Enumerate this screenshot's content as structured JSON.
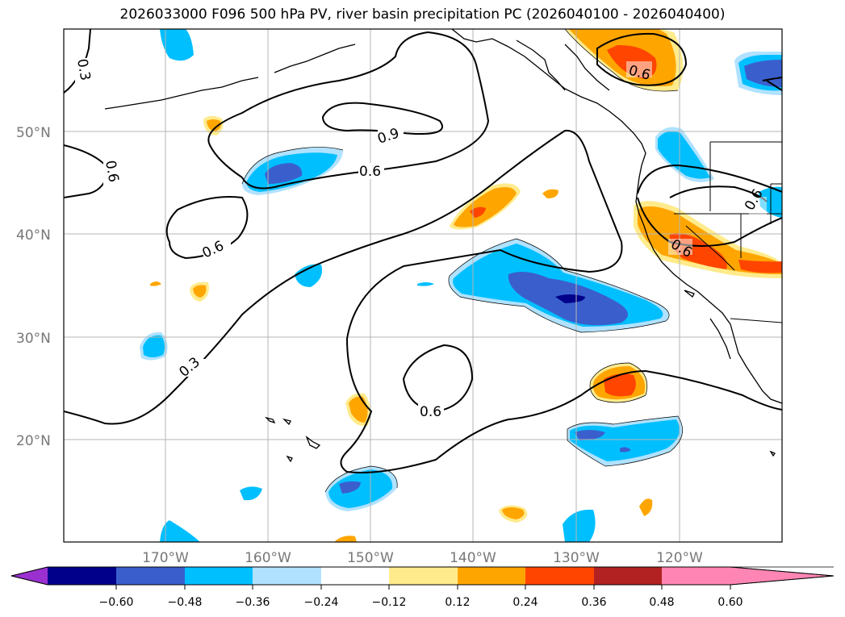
{
  "title": "2026033000 F096 500 hPa PV, river basin precipitation PC (2026040100 - 2026040400)",
  "map": {
    "lat_labels": [
      "50°N",
      "40°N",
      "30°N",
      "20°N"
    ],
    "lon_labels": [
      "170°W",
      "160°W",
      "150°W",
      "140°W",
      "130°W",
      "120°W"
    ],
    "contour_labels": [
      "0.3",
      "0.6",
      "0.9",
      "0.6",
      "0.6",
      "0.3",
      "0.6",
      "0.6",
      "0.6",
      "0.6"
    ]
  },
  "colorbar": {
    "ticks": [
      "−0.60",
      "−0.48",
      "−0.36",
      "−0.24",
      "−0.12",
      "0.12",
      "0.24",
      "0.36",
      "0.48",
      "0.60"
    ],
    "colors": [
      "#9b30d0",
      "#00008b",
      "#3a5fcd",
      "#00bfff",
      "#b0e2ff",
      "#ffffff",
      "#ffeb8c",
      "#ffa500",
      "#ff4500",
      "#b22222",
      "#ff86b4"
    ]
  }
}
